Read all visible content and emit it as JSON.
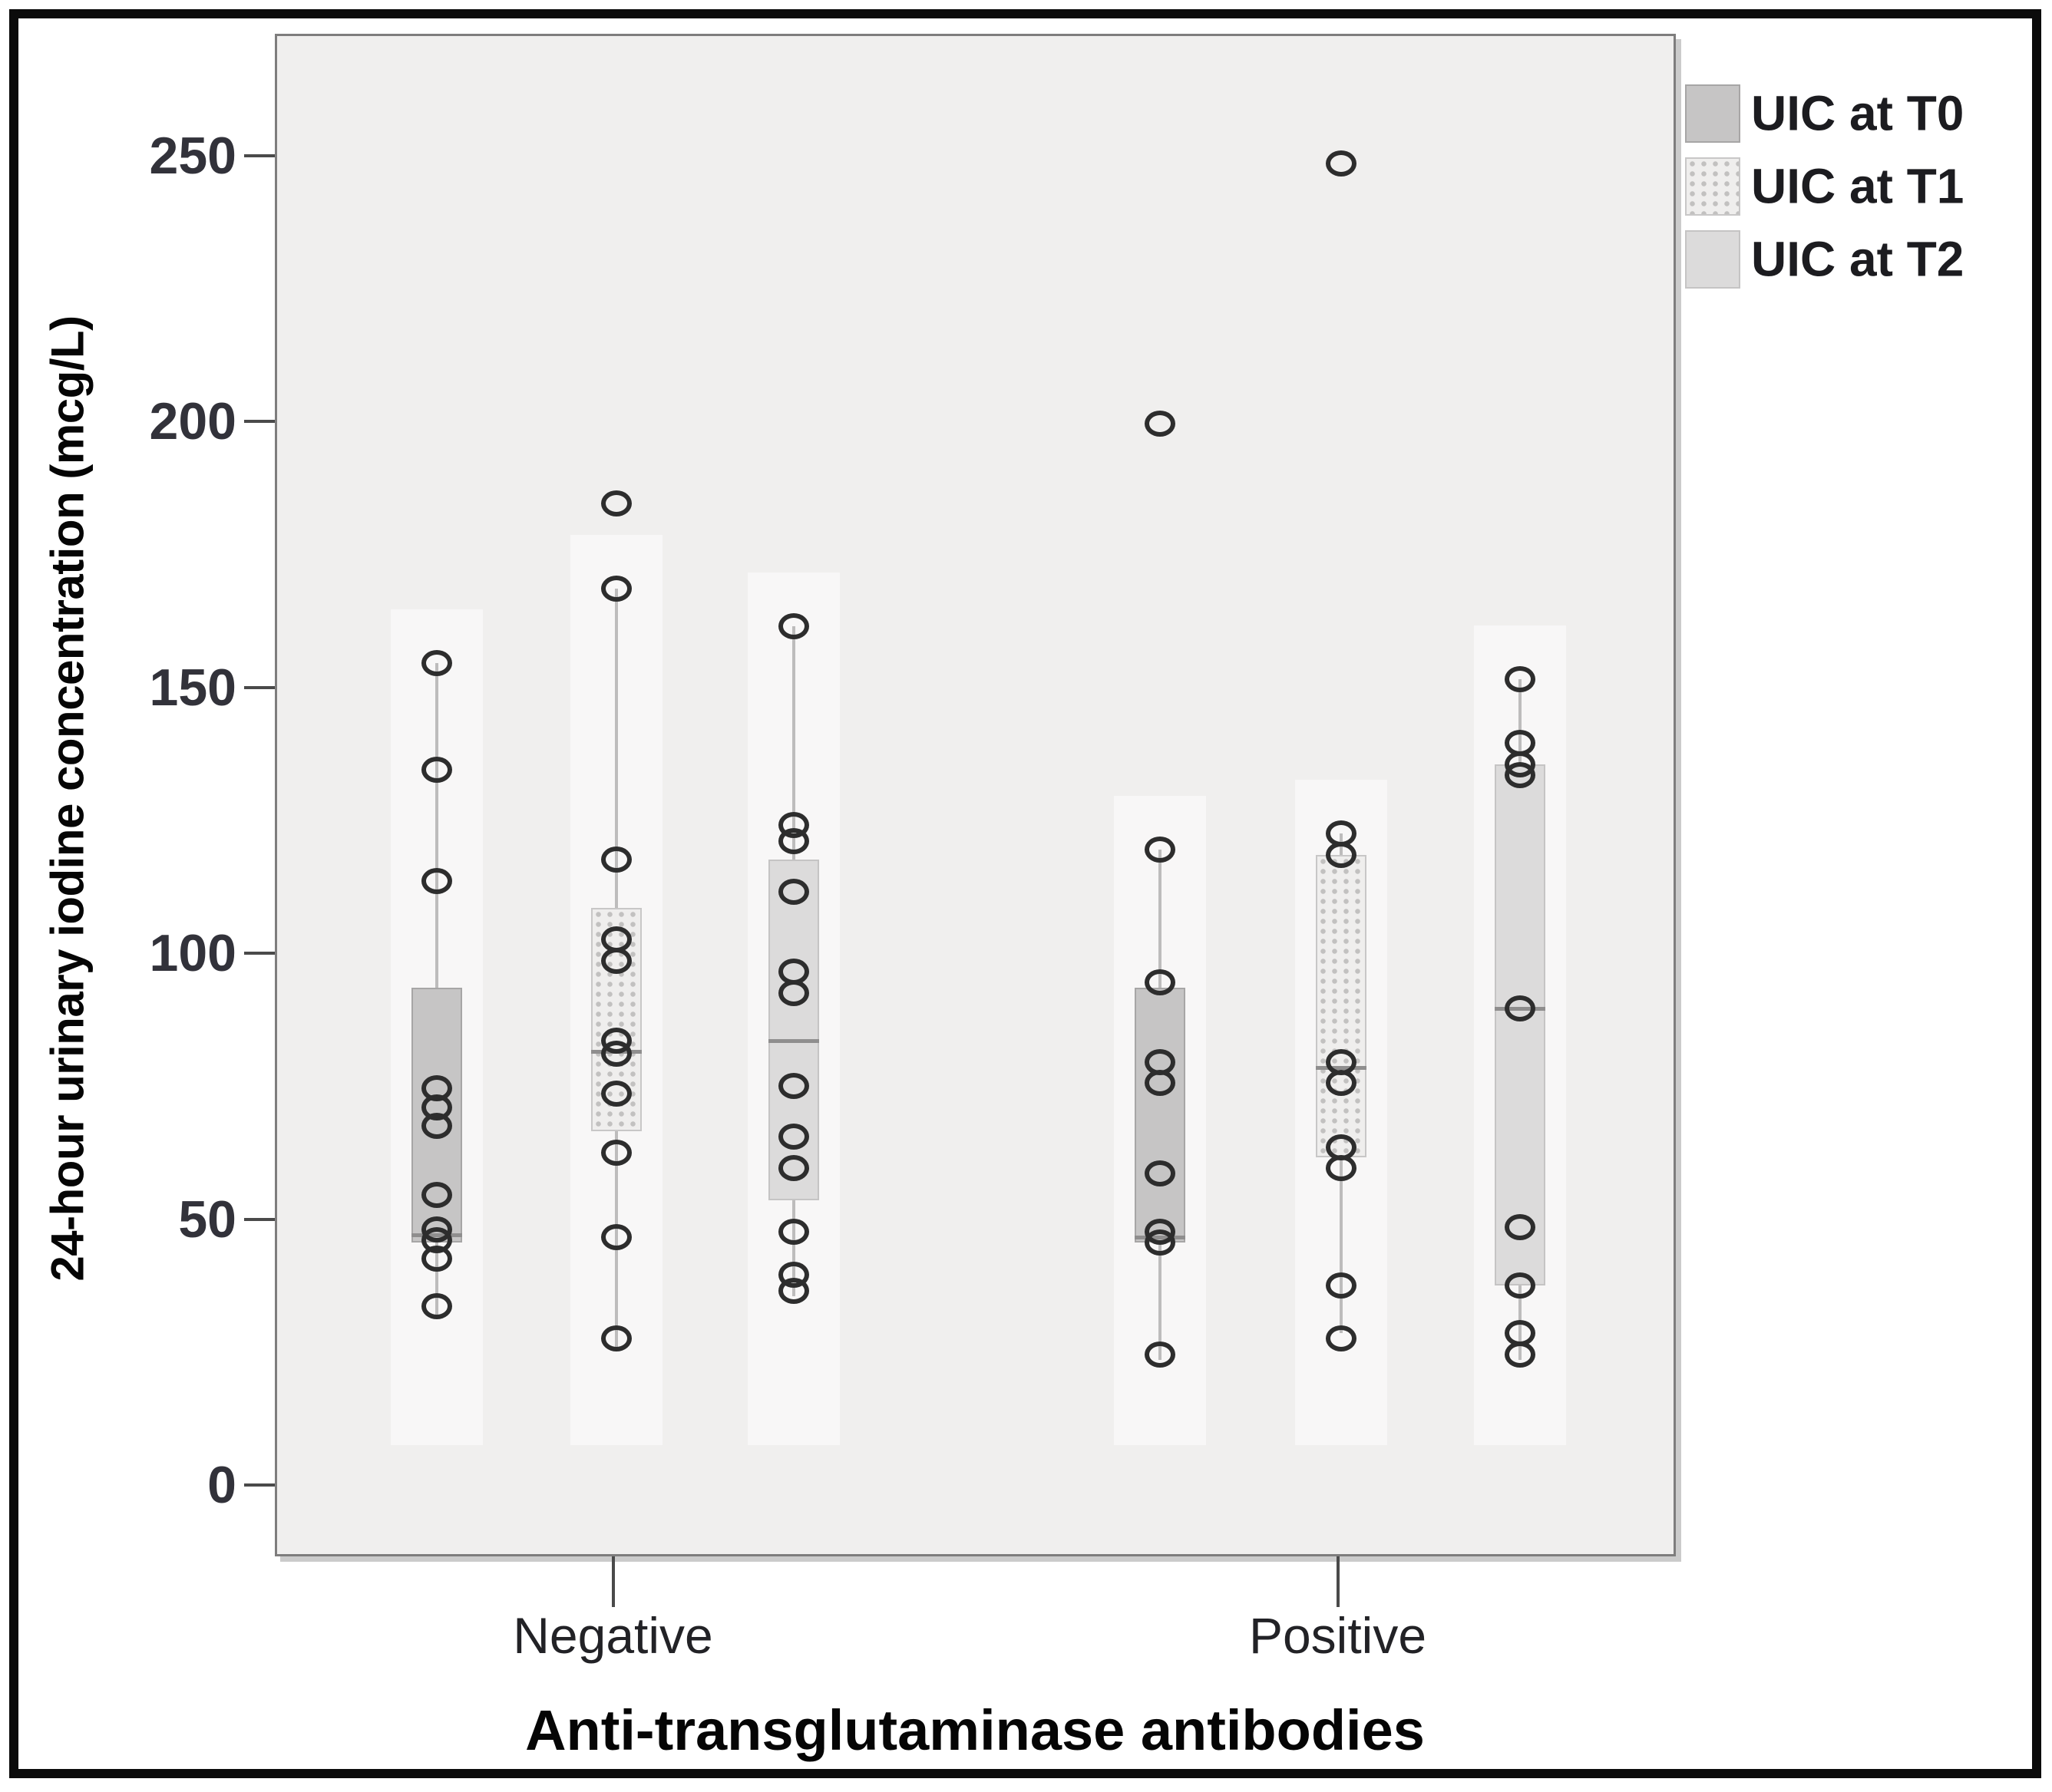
{
  "figure": {
    "type_note": "SPSS-style clustered boxplot with overlaid hollow data points"
  },
  "chart_data": {
    "type": "boxplot",
    "title": "",
    "xlabel": "Anti-transglutaminase antibodies",
    "ylabel": "24-hour urinary iodine concentration (mcg/L)",
    "yticks": [
      0,
      50,
      100,
      150,
      200,
      250
    ],
    "ylim": [
      -13,
      273
    ],
    "grid": false,
    "legend_position": "top-right-outside",
    "series": [
      {
        "name": "UIC at T0",
        "fill": "#c6c5c5",
        "border": "#a7a6a6",
        "pattern": "solid0"
      },
      {
        "name": "UIC at T1",
        "fill": "#efeeed",
        "border": "#c8c7c7",
        "pattern": "dots"
      },
      {
        "name": "UIC at T2",
        "fill": "#dcdbdb",
        "border": "#c5c4c4",
        "pattern": "solid2"
      }
    ],
    "groups": [
      {
        "label": "Negative",
        "boxes": [
          {
            "series": "UIC at T0",
            "q1": 46,
            "median": 47.5,
            "q3": 94,
            "whisker_low": 32.5,
            "whisker_high": 155,
            "points": [
              155,
              135,
              114,
              75,
              71.5,
              68,
              55,
              48.5,
              46.5,
              43,
              34
            ]
          },
          {
            "series": "UIC at T1",
            "q1": 67,
            "median": 82,
            "q3": 109,
            "whisker_low": 26,
            "whisker_high": 169,
            "points": [
              185,
              169,
              118,
              103,
              99,
              84,
              81.5,
              74,
              63,
              47,
              28
            ]
          },
          {
            "series": "UIC at T2",
            "q1": 54,
            "median": 84,
            "q3": 118,
            "whisker_low": 36,
            "whisker_high": 162,
            "points": [
              162,
              124.5,
              121.5,
              112,
              97,
              93,
              75.5,
              66,
              60,
              48,
              40,
              37
            ]
          }
        ]
      },
      {
        "label": "Positive",
        "boxes": [
          {
            "series": "UIC at T0",
            "q1": 46,
            "median": 47,
            "q3": 94,
            "whisker_low": 24,
            "whisker_high": 120,
            "points": [
              200,
              120,
              95,
              80,
              76,
              59,
              48,
              46,
              25
            ]
          },
          {
            "series": "UIC at T1",
            "q1": 62,
            "median": 79,
            "q3": 119,
            "whisker_low": 29,
            "whisker_high": 123,
            "points": [
              249,
              123,
              119,
              80,
              76,
              64,
              60,
              38,
              28
            ]
          },
          {
            "series": "UIC at T2",
            "q1": 38,
            "median": 90,
            "q3": 136,
            "whisker_low": 24,
            "whisker_high": 152,
            "points": [
              152,
              140,
              136,
              134,
              90,
              49,
              38,
              29,
              25
            ]
          }
        ]
      }
    ]
  }
}
